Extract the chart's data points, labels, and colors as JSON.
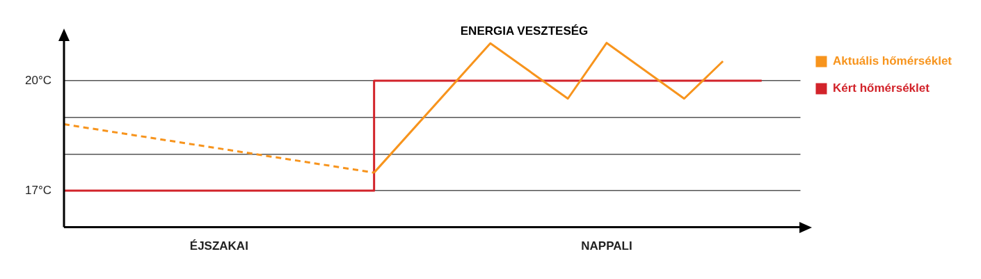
{
  "chart_data": {
    "type": "line",
    "annotations": [
      "ENERGIA VESZTESÉG"
    ],
    "categories": [
      null,
      null,
      null,
      null,
      "ÉJSZAKAI",
      null,
      null,
      null,
      null,
      null,
      null,
      null,
      null,
      null,
      "NAPPALI",
      null,
      null,
      null,
      null,
      null
    ],
    "ylim": [
      16,
      21.1
    ],
    "yticks": [
      {
        "value": 17,
        "label": "17°C"
      },
      {
        "value": 18,
        "label": null
      },
      {
        "value": 19,
        "label": null
      },
      {
        "value": 20,
        "label": "20°C"
      }
    ],
    "grid": "y",
    "legend": "right",
    "series": [
      {
        "name": "Aktuális hőmérséklet",
        "color": "#f7941d",
        "values": [
          null,
          null,
          null,
          null,
          null,
          null,
          null,
          null,
          17.49,
          null,
          null,
          21.02,
          null,
          19.51,
          21.03,
          null,
          19.51,
          20.53,
          null,
          null
        ]
      },
      {
        "color": "#f7941d",
        "line_style": "dashed",
        "values": [
          18.81,
          null,
          null,
          null,
          null,
          null,
          null,
          null,
          17.49,
          null,
          null,
          null,
          null,
          null,
          null,
          null,
          null,
          null,
          null,
          null
        ]
      },
      {
        "name": "Kért hőmérséklet",
        "type": "step",
        "color": "#d2232a",
        "values": [
          17,
          null,
          null,
          null,
          null,
          null,
          null,
          null,
          20,
          null,
          null,
          null,
          null,
          null,
          null,
          null,
          null,
          null,
          20,
          null
        ]
      }
    ]
  }
}
